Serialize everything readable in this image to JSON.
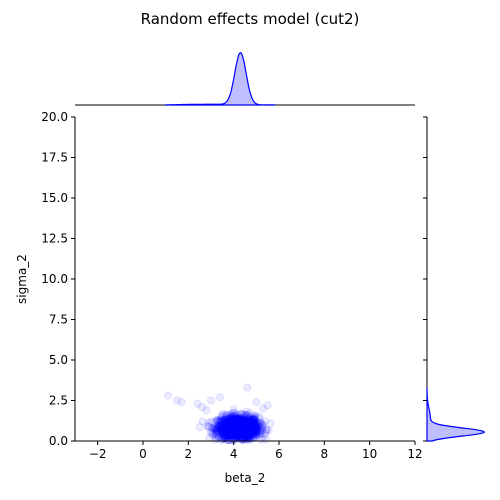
{
  "chart_data": {
    "type": "scatter",
    "title": "Random effects model (cut2)",
    "xlabel": "beta_2",
    "ylabel": "sigma_2",
    "xlim": [
      -3,
      12
    ],
    "ylim": [
      0,
      20
    ],
    "xticks": [
      "−2",
      "0",
      "2",
      "4",
      "6",
      "8",
      "10",
      "12"
    ],
    "xtick_values": [
      -2,
      0,
      2,
      4,
      6,
      8,
      10,
      12
    ],
    "yticks": [
      "0.0",
      "2.5",
      "5.0",
      "7.5",
      "10.0",
      "12.5",
      "15.0",
      "17.5",
      "20.0"
    ],
    "ytick_values": [
      0,
      2.5,
      5,
      7.5,
      10,
      12.5,
      15,
      17.5,
      20
    ],
    "grid": false,
    "point_color": "#0000ff",
    "cluster": {
      "x_center": 4.2,
      "x_spread": 0.45,
      "y_mode": 0.8,
      "y_spread": 0.35
    },
    "outliers": [
      {
        "x": 1.1,
        "y": 2.8
      },
      {
        "x": 1.5,
        "y": 2.5
      },
      {
        "x": 1.7,
        "y": 2.4
      },
      {
        "x": 2.4,
        "y": 2.3
      },
      {
        "x": 3.4,
        "y": 2.7
      },
      {
        "x": 4.6,
        "y": 3.3
      },
      {
        "x": 5.5,
        "y": 2.2
      },
      {
        "x": 2.6,
        "y": 2.1
      },
      {
        "x": 5.3,
        "y": 2.0
      },
      {
        "x": 3.0,
        "y": 2.5
      },
      {
        "x": 5.0,
        "y": 2.4
      },
      {
        "x": 2.8,
        "y": 1.9
      }
    ],
    "marginal_x": {
      "peak_x": 4.3,
      "sd": 0.25
    },
    "marginal_y": {
      "peak_y": 0.55,
      "sd": 0.25
    }
  }
}
